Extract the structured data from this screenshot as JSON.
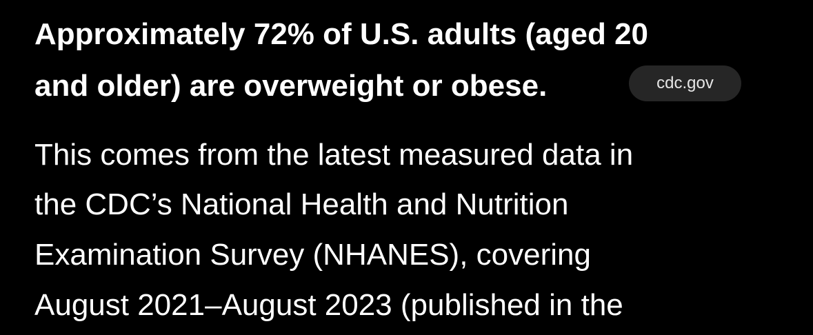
{
  "heading": {
    "lines": [
      "Approximately 72% of U.S. adults (aged 20",
      "and older) are overweight or obese."
    ],
    "source": "cdc.gov"
  },
  "paragraph": {
    "lines": [
      "This comes from the latest measured data in",
      "the CDC’s National Health and Nutrition",
      "Examination Survey (NHANES), covering",
      "August 2021–August 2023 (published in the"
    ]
  }
}
